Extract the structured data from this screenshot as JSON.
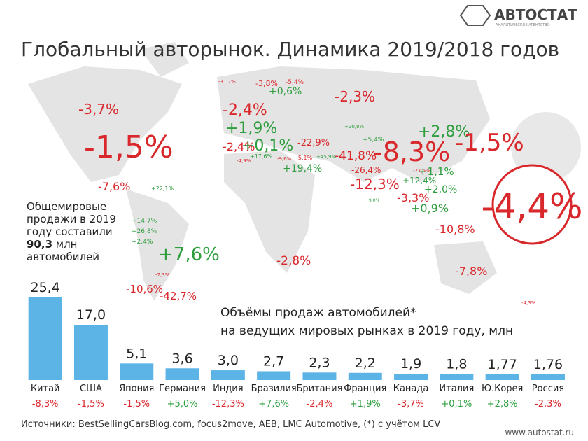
{
  "header": {
    "title": "Глобальный авторынок. Динамика 2019/2018 годов",
    "logo": "АВТОСТАТ",
    "logo_sub": "АНАЛИТИЧЕСКОЕ АГЕНТСТВО"
  },
  "info": {
    "line1": "Общемировые",
    "line2": "продажи в 2019",
    "line3": "году составили",
    "amount": "90,3",
    "unit": " млн",
    "line4": "автомобилей"
  },
  "map_labels": [
    {
      "label": "-3,7%",
      "color": "#d9282c"
    },
    {
      "label": "-1,5%",
      "color": "#d9282c"
    },
    {
      "label": "-7,6%",
      "color": "#d9282c"
    },
    {
      "label": "+22,1%",
      "color": "#2e9e3e"
    },
    {
      "label": "+14,7%",
      "color": "#2e9e3e"
    },
    {
      "label": "+26,8%",
      "color": "#2e9e3e"
    },
    {
      "label": "+2,4%",
      "color": "#2e9e3e"
    },
    {
      "label": "+7,6%",
      "color": "#2e9e3e"
    },
    {
      "label": "-7,3%",
      "color": "#d9282c"
    },
    {
      "label": "-10,6%",
      "color": "#d9282c"
    },
    {
      "label": "-42,7%",
      "color": "#d9282c"
    },
    {
      "label": "-2,8%",
      "color": "#d9282c"
    },
    {
      "label": "-2,3%",
      "color": "#d9282c"
    },
    {
      "label": "-8,3%",
      "color": "#d9282c"
    },
    {
      "label": "+2,8%",
      "color": "#2e9e3e"
    },
    {
      "label": "-1,5%",
      "color": "#d9282c"
    },
    {
      "label": "-41,8%",
      "color": "#d9282c"
    },
    {
      "label": "-12,3%",
      "color": "#d9282c"
    },
    {
      "label": "-3,3%",
      "color": "#d9282c"
    },
    {
      "label": "+1,1%",
      "color": "#2e9e3e"
    },
    {
      "label": "+2,0%",
      "color": "#2e9e3e"
    },
    {
      "label": "+0,9%",
      "color": "#2e9e3e"
    },
    {
      "label": "-10,8%",
      "color": "#d9282c"
    },
    {
      "label": "-7,8%",
      "color": "#d9282c"
    },
    {
      "label": "-4,3%",
      "color": "#d9282c"
    },
    {
      "label": "-22,9%",
      "color": "#d9282c"
    },
    {
      "label": "+19,4%",
      "color": "#2e9e3e"
    },
    {
      "label": "-26,4%",
      "color": "#d9282c"
    },
    {
      "label": "+5,4%",
      "color": "#2e9e3e"
    },
    {
      "label": "+20,8%",
      "color": "#2e9e3e"
    },
    {
      "label": "-2,4%",
      "color": "#d9282c"
    },
    {
      "label": "+0,1%",
      "color": "#2e9e3e"
    },
    {
      "label": "+1,9%",
      "color": "#2e9e3e"
    },
    {
      "label": "-3,8%",
      "color": "#d9282c"
    },
    {
      "label": "+0,6%",
      "color": "#2e9e3e"
    },
    {
      "label": "-5,4%",
      "color": "#d9282c"
    },
    {
      "label": "-31,7%",
      "color": "#d9282c"
    },
    {
      "label": "+17,6%",
      "color": "#2e9e3e"
    },
    {
      "label": "-4,9%",
      "color": "#d9282c"
    },
    {
      "label": "-9,6%",
      "color": "#d9282c"
    },
    {
      "label": "-5,1%",
      "color": "#d9282c"
    },
    {
      "label": "+45,9%",
      "color": "#2e9e3e"
    },
    {
      "label": "+12,4%",
      "color": "#2e9e3e"
    },
    {
      "label": "-27,5%",
      "color": "#d9282c"
    },
    {
      "label": "+9,0%",
      "color": "#2e9e3e"
    },
    {
      "label": "-2,4%",
      "color": "#d9282c"
    },
    {
      "label": "-4,4%",
      "color": "#d9282c"
    }
  ],
  "chart_data": {
    "type": "bar",
    "title": "Объёмы продаж автомобилей*",
    "subtitle": "на ведущих мировых рынках в 2019 году, млн",
    "categories": [
      "Китай",
      "США",
      "Япония",
      "Германия",
      "Индия",
      "Бразилия",
      "Британия",
      "Франция",
      "Канада",
      "Италия",
      "Ю.Корея",
      "Россия"
    ],
    "values": [
      25.4,
      17.0,
      5.1,
      3.6,
      3.0,
      2.7,
      2.3,
      2.2,
      1.9,
      1.8,
      1.77,
      1.76
    ],
    "value_labels": [
      "25,4",
      "17,0",
      "5,1",
      "3,6",
      "3,0",
      "2,7",
      "2,3",
      "2,2",
      "1,9",
      "1,8",
      "1,77",
      "1,76"
    ],
    "change_labels": [
      "-8,3%",
      "-1,5%",
      "-1,5%",
      "+5,0%",
      "-12,3%",
      "+7,6%",
      "-2,4%",
      "+1,9%",
      "-3,7%",
      "+0,1%",
      "+2,8%",
      "-2,3%"
    ],
    "change_colors": [
      "#d9282c",
      "#d9282c",
      "#d9282c",
      "#2e9e3e",
      "#d9282c",
      "#2e9e3e",
      "#d9282c",
      "#2e9e3e",
      "#d9282c",
      "#2e9e3e",
      "#2e9e3e",
      "#d9282c"
    ],
    "color": "#5cb4e6"
  },
  "footer": {
    "sources": "Источники: BestSellingCarsBlog.com, focus2move, AEB, LMC Automotive, (*) с учётом LCV",
    "site": "www.autostat.ru"
  }
}
